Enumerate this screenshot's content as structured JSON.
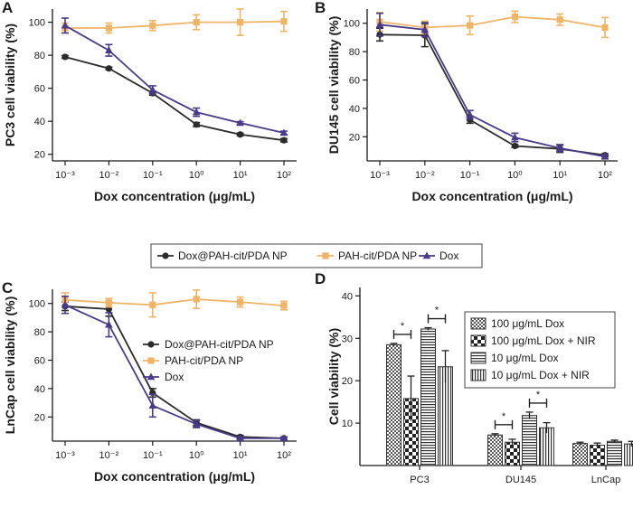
{
  "colors": {
    "dox_pah_cit_pda_np": "#2b2b2b",
    "pah_cit_pda_np": "#f0b467",
    "dox": "#4b3a8a",
    "axis": "#1a1a1a"
  },
  "shared_legend": [
    "Dox@PAH-cit/PDA NP",
    "PAH-cit/PDA NP",
    "Dox"
  ],
  "chart_data": [
    {
      "panel": "A",
      "type": "line",
      "xscale": "log",
      "x": [
        0.001,
        0.01,
        0.1,
        1,
        10,
        100
      ],
      "x_tick_labels": [
        "10⁻³",
        "10⁻²",
        "10⁻¹",
        "10⁰",
        "10¹",
        "10²"
      ],
      "xlabel": "Dox concentration (μg/mL)",
      "ylabel": "PC3 cell viability (%)",
      "ylim": [
        16,
        108
      ],
      "yticks": [
        20,
        40,
        60,
        80,
        100
      ],
      "series": [
        {
          "name": "Dox@PAH-cit/PDA NP",
          "values": [
            79,
            72,
            57,
            38,
            32,
            28.5
          ],
          "errors": [
            0.8,
            0.8,
            1.2,
            1.2,
            0.8,
            1.0
          ]
        },
        {
          "name": "PAH-cit/PDA NP",
          "values": [
            96.5,
            96.5,
            98,
            100,
            100,
            100.5
          ],
          "errors": [
            3,
            3,
            3,
            4.5,
            8,
            6
          ]
        },
        {
          "name": "Dox",
          "values": [
            98,
            83,
            59,
            45.5,
            39,
            33
          ],
          "errors": [
            4.5,
            3.5,
            2.5,
            2.5,
            0.8,
            1.0
          ]
        }
      ]
    },
    {
      "panel": "B",
      "type": "line",
      "xscale": "log",
      "x": [
        0.001,
        0.01,
        0.1,
        1,
        10,
        100
      ],
      "x_tick_labels": [
        "10⁻³",
        "10⁻²",
        "10⁻¹",
        "10⁰",
        "10¹",
        "10²"
      ],
      "xlabel": "Dox concentration (μg/mL)",
      "ylabel": "DU145 cell viability (%)",
      "ylim": [
        3,
        110
      ],
      "yticks": [
        20,
        40,
        60,
        80,
        100
      ],
      "series": [
        {
          "name": "Dox@PAH-cit/PDA NP",
          "values": [
            92,
            91.5,
            32,
            13.5,
            11.5,
            7
          ],
          "errors": [
            4.5,
            8,
            2.5,
            1.0,
            2.5,
            1.0
          ]
        },
        {
          "name": "PAH-cit/PDA NP",
          "values": [
            101,
            97,
            98.5,
            104.5,
            102.5,
            97
          ],
          "errors": [
            6.5,
            4.5,
            6.5,
            4,
            4,
            7
          ]
        },
        {
          "name": "Dox",
          "values": [
            99,
            95.5,
            35.5,
            19.5,
            12,
            6
          ],
          "errors": [
            8,
            5,
            3,
            3,
            2.5,
            1.5
          ]
        }
      ]
    },
    {
      "panel": "C",
      "type": "line",
      "xscale": "log",
      "x": [
        0.001,
        0.01,
        0.1,
        1,
        10,
        100
      ],
      "x_tick_labels": [
        "10⁻³",
        "10⁻²",
        "10⁻¹",
        "10⁰",
        "10¹",
        "10²"
      ],
      "xlabel": "Dox concentration (μg/mL)",
      "ylabel": "LnCap cell viability (%)",
      "ylim": [
        3,
        110
      ],
      "yticks": [
        20,
        40,
        60,
        80,
        100
      ],
      "legend": [
        "Dox@PAH-cit/PDA NP",
        "PAH-cit/PDA NP",
        "Dox"
      ],
      "series": [
        {
          "name": "Dox@PAH-cit/PDA NP",
          "values": [
            98,
            96,
            37,
            16,
            6,
            5
          ],
          "errors": [
            3,
            5,
            3,
            2,
            1,
            1
          ]
        },
        {
          "name": "PAH-cit/PDA NP",
          "values": [
            102.5,
            100.5,
            99,
            103,
            101,
            98.5
          ],
          "errors": [
            5,
            3,
            8.5,
            6.5,
            3.5,
            3
          ]
        },
        {
          "name": "Dox",
          "values": [
            99,
            85,
            28,
            15,
            5,
            5
          ],
          "errors": [
            6,
            8.5,
            8,
            2.5,
            1,
            1
          ]
        }
      ]
    },
    {
      "panel": "D",
      "type": "bar",
      "categories": [
        "PC3",
        "DU145",
        "LnCap"
      ],
      "ylabel": "Cell viability (%)",
      "xlabel": "",
      "ylim": [
        0,
        42
      ],
      "yticks": [
        10,
        20,
        30,
        40
      ],
      "legend": [
        "100 μg/mL Dox",
        "100 μg/mL Dox + NIR",
        "10 μg/mL Dox",
        "10 μg/mL Dox + NIR"
      ],
      "significance_marker": "*",
      "series": [
        {
          "name": "100 μg/mL Dox",
          "values": [
            28.5,
            7.2,
            5.2
          ],
          "errors": [
            0.3,
            0.3,
            0.3
          ]
        },
        {
          "name": "100 μg/mL Dox + NIR",
          "values": [
            15.8,
            5.5,
            4.8
          ],
          "errors": [
            5.3,
            0.7,
            0.5
          ]
        },
        {
          "name": "10 μg/mL Dox",
          "values": [
            32.2,
            11.8,
            5.7
          ],
          "errors": [
            0.3,
            0.8,
            0.3
          ]
        },
        {
          "name": "10 μg/mL Dox + NIR",
          "values": [
            23.3,
            8.9,
            5.1
          ],
          "errors": [
            3.8,
            1.2,
            0.6
          ]
        }
      ],
      "significance": [
        {
          "category": 0,
          "from": 0,
          "to": 1
        },
        {
          "category": 0,
          "from": 2,
          "to": 3
        },
        {
          "category": 1,
          "from": 0,
          "to": 1
        },
        {
          "category": 1,
          "from": 2,
          "to": 3
        }
      ]
    }
  ]
}
